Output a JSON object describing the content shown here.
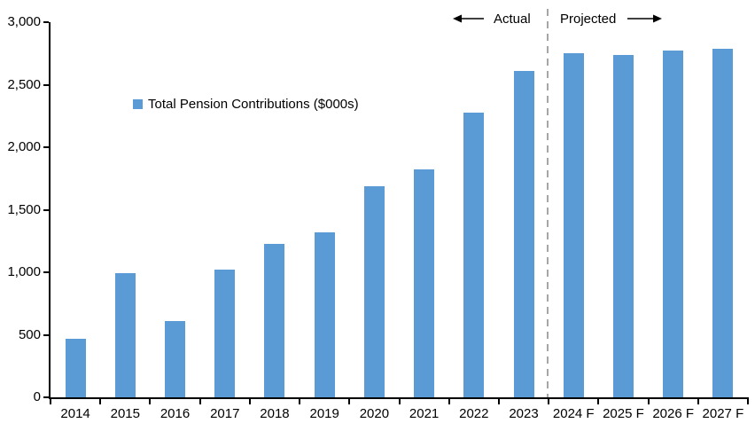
{
  "chart_data": {
    "type": "bar",
    "title": "",
    "legend": "Total Pension Contributions ($000s)",
    "categories": [
      "2014",
      "2015",
      "2016",
      "2017",
      "2018",
      "2019",
      "2020",
      "2021",
      "2022",
      "2023",
      "2024 F",
      "2025 F",
      "2026 F",
      "2027 F"
    ],
    "values": [
      470,
      990,
      610,
      1020,
      1230,
      1320,
      1690,
      1820,
      2280,
      2610,
      2750,
      2740,
      2770,
      2790
    ],
    "ylim": [
      0,
      3000
    ],
    "ytick_interval": 500,
    "ytick_labels": [
      "0",
      "500",
      "1,000",
      "1,500",
      "2,000",
      "2,500",
      "3,000"
    ],
    "grid": false,
    "legend_position": "upper-left-inside",
    "bar_color": "#5b9bd5",
    "axis_color": "#000000",
    "divider_color": "#a6a6a6",
    "divider_after_category_index": 10,
    "annotations": {
      "actual_label": "Actual",
      "projected_label": "Projected"
    }
  }
}
